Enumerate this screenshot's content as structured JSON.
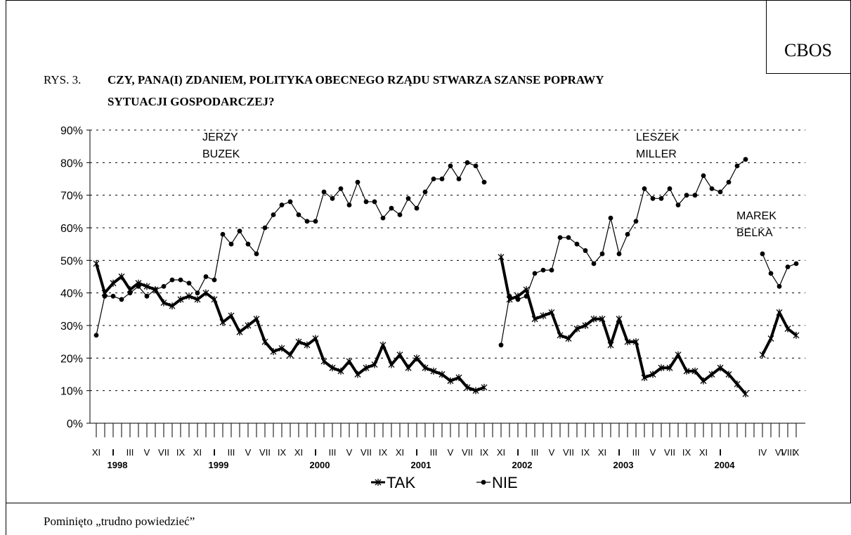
{
  "source": "CBOS",
  "note": "Pominięto „trudno powiedzieć”",
  "chart_data": {
    "type": "line",
    "figure_label": "RYS. 3.",
    "title": [
      "CZY, PANA(I) ZDANIEM, POLITYKA OBECNEGO RZĄDU STWARZA SZANSE POPRAWY",
      "SYTUACJI GOSPODARCZEJ?"
    ],
    "categories": [
      "XI",
      null,
      "I",
      null,
      "III",
      null,
      "V",
      null,
      "VII",
      null,
      "IX",
      null,
      "XI",
      null,
      "I",
      null,
      "III",
      null,
      "V",
      null,
      "VII",
      null,
      "IX",
      null,
      "XI",
      null,
      "I",
      null,
      "III",
      null,
      "V",
      null,
      "VII",
      null,
      "IX",
      null,
      "XI",
      null,
      "I",
      null,
      "III",
      null,
      "V",
      null,
      "VII",
      null,
      "IX",
      null,
      "XI",
      null,
      "I",
      null,
      "III",
      null,
      "V",
      null,
      "VII",
      null,
      "IX",
      null,
      "XI",
      null,
      "I",
      null,
      "III",
      null,
      "V",
      null,
      "VII",
      null,
      "IX",
      null,
      "XI",
      null,
      "I",
      null,
      null,
      null,
      null,
      "IV",
      null,
      "VI",
      "VIII",
      "X"
    ],
    "years": [
      null,
      null,
      "1998",
      null,
      null,
      null,
      null,
      null,
      null,
      null,
      null,
      null,
      null,
      null,
      "1999",
      null,
      null,
      null,
      null,
      null,
      null,
      null,
      null,
      null,
      null,
      null,
      "2000",
      null,
      null,
      null,
      null,
      null,
      null,
      null,
      null,
      null,
      null,
      null,
      "2001",
      null,
      null,
      null,
      null,
      null,
      null,
      null,
      null,
      null,
      null,
      null,
      "2002",
      null,
      null,
      null,
      null,
      null,
      null,
      null,
      null,
      null,
      null,
      null,
      "2003",
      null,
      null,
      null,
      null,
      null,
      null,
      null,
      null,
      null,
      null,
      null,
      "2004",
      null,
      null,
      null,
      null,
      null,
      null,
      null,
      null,
      null
    ],
    "series": [
      {
        "name": "TAK",
        "color": "#000000",
        "marker": "star",
        "values": [
          49,
          40,
          43,
          45,
          41,
          43,
          42,
          41,
          37,
          36,
          38,
          39,
          38,
          40,
          38,
          31,
          33,
          28,
          30,
          32,
          25,
          22,
          23,
          21,
          25,
          24,
          26,
          19,
          17,
          16,
          19,
          15,
          17,
          18,
          24,
          18,
          21,
          17,
          20,
          17,
          16,
          15,
          13,
          14,
          11,
          10,
          11,
          null,
          51,
          38,
          39,
          41,
          32,
          33,
          34,
          27,
          26,
          29,
          30,
          32,
          32,
          24,
          32,
          25,
          25,
          14,
          15,
          17,
          17,
          21,
          16,
          16,
          13,
          15,
          17,
          15,
          12,
          9,
          null,
          21,
          26,
          34,
          29,
          27
        ]
      },
      {
        "name": "NIE",
        "color": "#000000",
        "marker": "dot",
        "values": [
          27,
          39,
          39,
          38,
          40,
          42,
          39,
          41,
          42,
          44,
          44,
          43,
          40,
          45,
          44,
          58,
          55,
          59,
          55,
          52,
          60,
          64,
          67,
          68,
          64,
          62,
          62,
          71,
          69,
          72,
          67,
          74,
          68,
          68,
          63,
          66,
          64,
          69,
          66,
          71,
          75,
          75,
          79,
          75,
          80,
          79,
          74,
          null,
          24,
          39,
          38,
          39,
          46,
          47,
          47,
          57,
          57,
          55,
          53,
          49,
          52,
          63,
          52,
          58,
          62,
          72,
          69,
          69,
          72,
          67,
          70,
          70,
          76,
          72,
          71,
          74,
          79,
          81,
          null,
          52,
          46,
          42,
          48,
          49
        ]
      }
    ],
    "annotations": [
      [
        "JERZY",
        "BUZEK"
      ],
      [
        "LESZEK",
        "MILLER"
      ],
      [
        "MAREK",
        "BELKA"
      ]
    ],
    "ylim": [
      0,
      90
    ],
    "yticks": [
      {
        "value": 0,
        "label": "0%"
      },
      {
        "value": 10,
        "label": "10%"
      },
      {
        "value": 20,
        "label": "20%"
      },
      {
        "value": 30,
        "label": "30%"
      },
      {
        "value": 40,
        "label": "40%"
      },
      {
        "value": 50,
        "label": "50%"
      },
      {
        "value": 60,
        "label": "60%"
      },
      {
        "value": 70,
        "label": "70%"
      },
      {
        "value": 80,
        "label": "80%"
      },
      {
        "value": 90,
        "label": "90%"
      }
    ],
    "grid": true,
    "legend": "bottom"
  }
}
